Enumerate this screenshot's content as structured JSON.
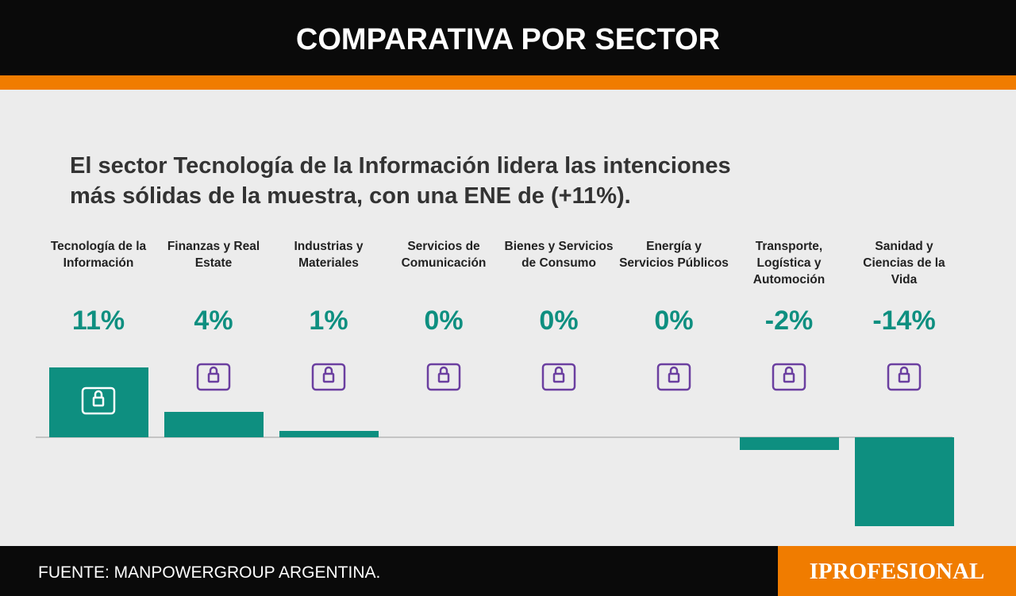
{
  "chart_data": {
    "type": "bar",
    "title": "COMPARATIVA POR SECTOR",
    "subtitle": "El sector Tecnología de la Información lidera las intenciones más sólidas de la muestra, con una ENE de (+11%).",
    "categories": [
      "Tecnología de la Información",
      "Finanzas y Real Estate",
      "Industrias y Materiales",
      "Servicios de Comunicación",
      "Bienes y Servicios de Consumo",
      "Energía y Servicios Públicos",
      "Transporte, Logística y Automoción",
      "Sanidad y Ciencias de la Vida"
    ],
    "values": [
      11,
      4,
      1,
      0,
      0,
      0,
      -2,
      -14
    ],
    "value_labels": [
      "11%",
      "4%",
      "1%",
      "0%",
      "0%",
      "0%",
      "-2%",
      "-14%"
    ],
    "color": "#0e8f80",
    "source": "FUENTE: MANPOWERGROUP ARGENTINA.",
    "brand": "IPROFESIONAL"
  }
}
